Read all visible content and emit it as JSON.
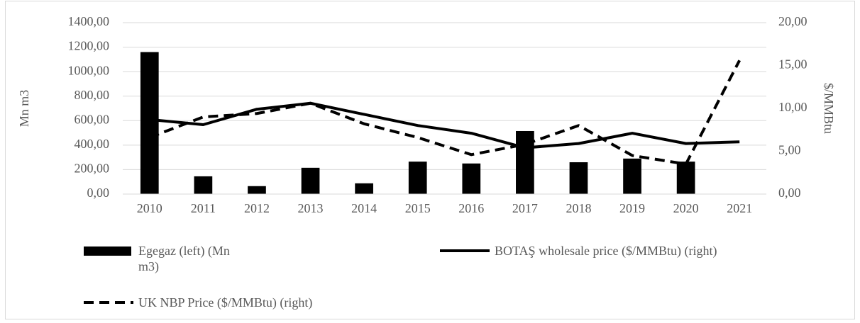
{
  "chart_data": {
    "type": "bar",
    "y_label": "Mn m3",
    "y2_label": "$/MMBtu",
    "categories": [
      "2010",
      "2011",
      "2012",
      "2013",
      "2014",
      "2015",
      "2016",
      "2017",
      "2018",
      "2019",
      "2020",
      "2021"
    ],
    "series": [
      {
        "name": "Egegaz (left) (Mn m3)",
        "type": "bar",
        "color": "#000000",
        "values": [
          1160,
          145,
          65,
          215,
          88,
          265,
          250,
          515,
          260,
          290,
          265,
          null
        ]
      },
      {
        "name": "BOTAŞ wholesale price ($/MMBtu) (right)",
        "type": "line",
        "dash": false,
        "axis": "y2",
        "color": "#000000",
        "values": [
          8.7,
          8.1,
          9.9,
          10.6,
          9.3,
          8.0,
          7.1,
          5.4,
          5.9,
          7.1,
          5.9,
          6.1
        ]
      },
      {
        "name": "UK NBP Price ($/MMBtu) (right)",
        "type": "line",
        "dash": true,
        "axis": "y2",
        "color": "#000000",
        "values": [
          6.6,
          9.0,
          9.4,
          10.6,
          8.2,
          6.6,
          4.6,
          5.8,
          8.0,
          4.5,
          3.5,
          15.6
        ]
      }
    ],
    "ylim": [
      0,
      1400
    ],
    "yticks": [
      {
        "value": 0,
        "label": "0,00"
      },
      {
        "value": 200,
        "label": "200,00"
      },
      {
        "value": 400,
        "label": "400,00"
      },
      {
        "value": 600,
        "label": "600,00"
      },
      {
        "value": 800,
        "label": "800,00"
      },
      {
        "value": 1000,
        "label": "1000,00"
      },
      {
        "value": 1200,
        "label": "1200,00"
      },
      {
        "value": 1400,
        "label": "1400,00"
      }
    ],
    "y2lim": [
      0,
      20
    ],
    "y2ticks": [
      {
        "value": 0,
        "label": "0,00"
      },
      {
        "value": 5,
        "label": "5,00"
      },
      {
        "value": 10,
        "label": "10,00"
      },
      {
        "value": 15,
        "label": "15,00"
      },
      {
        "value": 20,
        "label": "20,00"
      }
    ]
  }
}
